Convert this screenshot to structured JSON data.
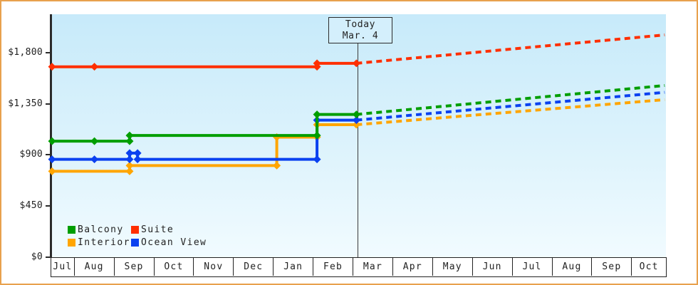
{
  "figure": {
    "frame_color": "#e8a14e",
    "plot_bg_top": "#c7eafa",
    "plot_bg_bottom": "#f1fbff",
    "axis_color": "#2b2b2b"
  },
  "chart": {
    "today_box": {
      "line1": "Today",
      "line2": "Mar. 4"
    },
    "legend": [
      {
        "label": "Balcony",
        "color": "#009e00"
      },
      {
        "label": "Suite",
        "color": "#ff2f00"
      },
      {
        "label": "Interior",
        "color": "#ffa500"
      },
      {
        "label": "Ocean View",
        "color": "#0a41f0"
      }
    ]
  },
  "chart_data": {
    "type": "line",
    "title": "",
    "x_axis_months": [
      "Jul",
      "Aug",
      "Sep",
      "Oct",
      "Nov",
      "Dec",
      "Jan",
      "Feb",
      "Mar",
      "Apr",
      "May",
      "Jun",
      "Jul",
      "Aug",
      "Sep",
      "Oct"
    ],
    "y_ticks": [
      {
        "label": "$1,800",
        "value": 1800
      },
      {
        "label": "$1,350",
        "value": 1350
      },
      {
        "label": "$900",
        "value": 900
      },
      {
        "label": "$450",
        "value": 450
      },
      {
        "label": "$0",
        "value": 0
      }
    ],
    "ylim": [
      0,
      2140
    ],
    "grid": false,
    "legend_position": "bottom-left",
    "today_annotation": {
      "label": "Today",
      "date": "Mar. 4"
    },
    "line_style": {
      "history": "solid",
      "forecast": "dashed",
      "marker": "diamond"
    },
    "series": [
      {
        "name": "Interior",
        "color": "#ffa500",
        "history": [
          {
            "date": "Jul 15",
            "price": 755
          },
          {
            "date": "Sep 13",
            "price": 755
          },
          {
            "date": "Sep 13",
            "price": 805
          },
          {
            "date": "Jan 4",
            "price": 805
          },
          {
            "date": "Jan 4",
            "price": 1055
          },
          {
            "date": "Feb 4",
            "price": 1055
          },
          {
            "date": "Feb 4",
            "price": 1165
          },
          {
            "date": "Mar 4",
            "price": 1165
          }
        ],
        "forecast": [
          {
            "date": "Mar 4",
            "price": 1165
          },
          {
            "date": "Oct 27",
            "price": 1385
          }
        ]
      },
      {
        "name": "Ocean View",
        "color": "#0a41f0",
        "history": [
          {
            "date": "Jul 15",
            "price": 860
          },
          {
            "date": "Aug 17",
            "price": 860
          },
          {
            "date": "Sep 13",
            "price": 860
          },
          {
            "date": "Sep 13",
            "price": 915
          },
          {
            "date": "Sep 19",
            "price": 915
          },
          {
            "date": "Sep 19",
            "price": 860
          },
          {
            "date": "Feb 4",
            "price": 860
          },
          {
            "date": "Feb 4",
            "price": 1205
          },
          {
            "date": "Mar 4",
            "price": 1205
          }
        ],
        "forecast": [
          {
            "date": "Mar 4",
            "price": 1205
          },
          {
            "date": "Oct 27",
            "price": 1450
          }
        ]
      },
      {
        "name": "Balcony",
        "color": "#009e00",
        "history": [
          {
            "date": "Jul 15",
            "price": 1020
          },
          {
            "date": "Aug 17",
            "price": 1020
          },
          {
            "date": "Sep 13",
            "price": 1020
          },
          {
            "date": "Sep 13",
            "price": 1070
          },
          {
            "date": "Feb 4",
            "price": 1070
          },
          {
            "date": "Feb 4",
            "price": 1255
          },
          {
            "date": "Mar 4",
            "price": 1255
          }
        ],
        "forecast": [
          {
            "date": "Mar 4",
            "price": 1255
          },
          {
            "date": "Oct 27",
            "price": 1510
          }
        ]
      },
      {
        "name": "Suite",
        "color": "#ff2f00",
        "history": [
          {
            "date": "Jul 15",
            "price": 1675
          },
          {
            "date": "Aug 17",
            "price": 1675
          },
          {
            "date": "Feb 4",
            "price": 1675
          },
          {
            "date": "Feb 4",
            "price": 1705
          },
          {
            "date": "Mar 4",
            "price": 1705
          }
        ],
        "forecast": [
          {
            "date": "Mar 4",
            "price": 1705
          },
          {
            "date": "Oct 27",
            "price": 1955
          }
        ]
      }
    ]
  }
}
